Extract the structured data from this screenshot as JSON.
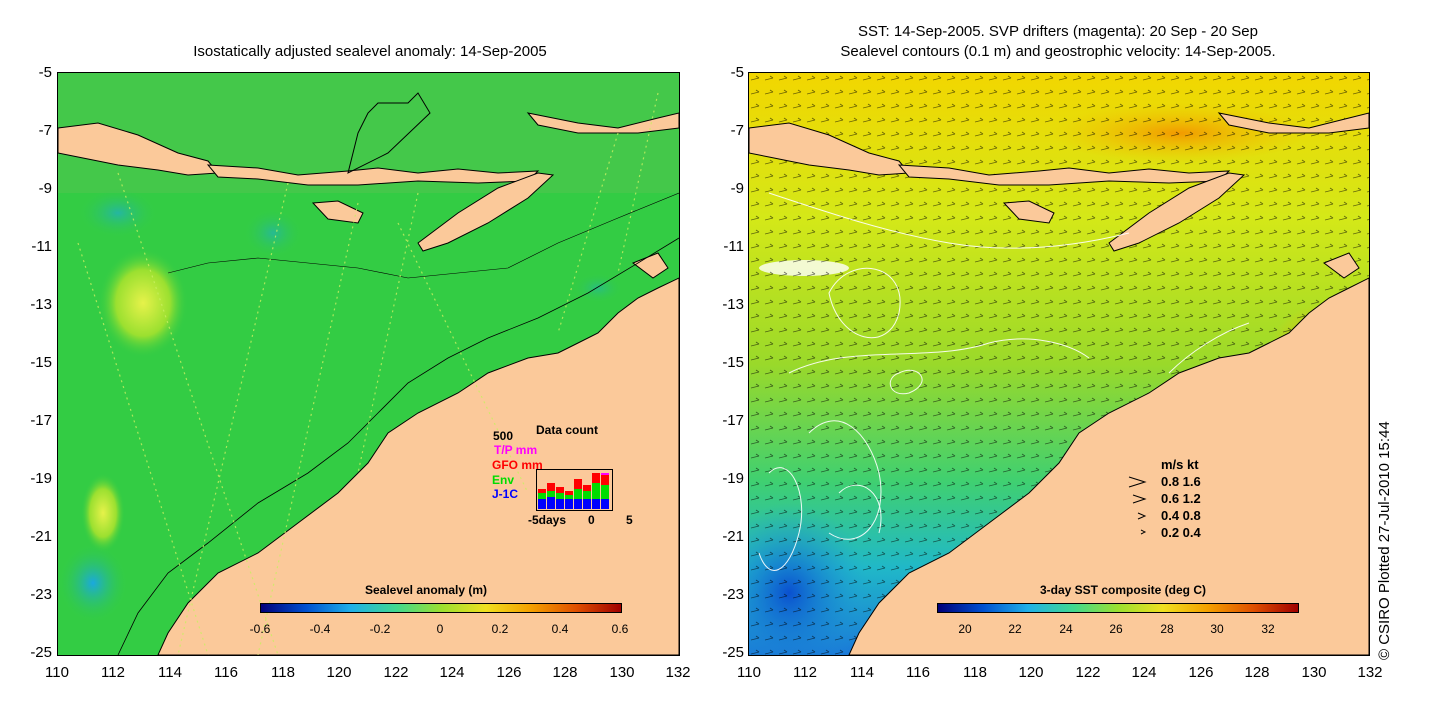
{
  "left_panel": {
    "title": "Isostatically adjusted sealevel anomaly: 14-Sep-2005",
    "y_ticks": [
      "-5",
      "-7",
      "-9",
      "-11",
      "-13",
      "-15",
      "-17",
      "-19",
      "-21",
      "-23",
      "-25"
    ],
    "x_ticks": [
      "110",
      "112",
      "114",
      "116",
      "118",
      "120",
      "122",
      "124",
      "126",
      "128",
      "130",
      "132"
    ],
    "colorbar": {
      "title": "Sealevel anomaly (m)",
      "ticks": [
        "-0.6",
        "-0.4",
        "-0.2",
        "0",
        "0.2",
        "0.4",
        "0.6"
      ]
    },
    "data_count": {
      "max_label": "500",
      "title": "Data count",
      "legend": [
        {
          "label": "T/P mm",
          "color": "#ff00ff"
        },
        {
          "label": "GFO mm",
          "color": "#ff0000"
        },
        {
          "label": "Env",
          "color": "#00dd00"
        },
        {
          "label": "J-1C",
          "color": "#0000ff"
        }
      ],
      "x_labels": [
        "-5days",
        "0",
        "5"
      ]
    }
  },
  "right_panel": {
    "title_line1": "SST: 14-Sep-2005. SVP drifters (magenta): 20 Sep - 20 Sep",
    "title_line2": "Sealevel contours (0.1 m) and geostrophic velocity: 14-Sep-2005.",
    "y_ticks": [
      "-5",
      "-7",
      "-9",
      "-11",
      "-13",
      "-15",
      "-17",
      "-19",
      "-21",
      "-23",
      "-25"
    ],
    "x_ticks": [
      "110",
      "112",
      "114",
      "116",
      "118",
      "120",
      "122",
      "124",
      "126",
      "128",
      "130",
      "132"
    ],
    "colorbar": {
      "title": "3-day SST composite (deg C)",
      "ticks": [
        "20",
        "22",
        "24",
        "26",
        "28",
        "30",
        "32"
      ]
    },
    "velocity_legend": {
      "header": "m/s  kt",
      "rows": [
        "0.8  1.6",
        "0.6  1.2",
        "0.4  0.8",
        "0.2  0.4"
      ]
    }
  },
  "credit": "© CSIRO Plotted 27-Jul-2010 15:44",
  "colors": {
    "land": "#fbc99a",
    "ocean_left": "#33cc44",
    "ocean_right": "#9ad92a",
    "warm": "#f2b400",
    "cool": "#20a0d8"
  }
}
